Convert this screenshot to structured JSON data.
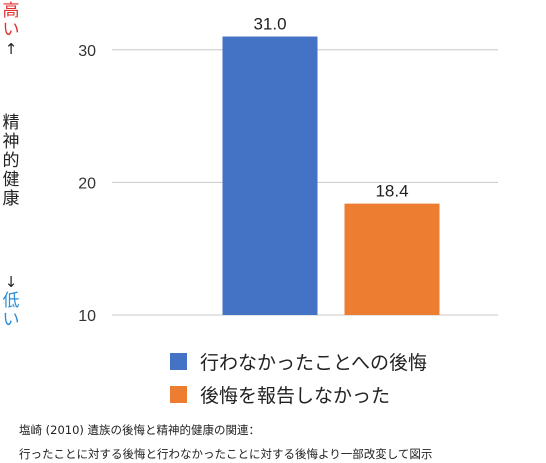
{
  "chart_data": {
    "type": "bar",
    "categories": [
      "行わなかったことへの後悔",
      "後悔を報告しなかった"
    ],
    "values": [
      31.0,
      18.4
    ],
    "value_labels": [
      "31.0",
      "18.4"
    ],
    "ylim": [
      10,
      33
    ],
    "yticks": [
      10,
      20,
      30
    ],
    "colors": [
      "#4472c4",
      "#ed7d31"
    ],
    "grid": true,
    "legend_position": "bottom"
  },
  "y_axis_annotation": {
    "high": "高い",
    "up_arrow": "↑",
    "label_chars": [
      "精",
      "神",
      "的",
      "健",
      "康"
    ],
    "down_arrow": "↓",
    "low": "低い",
    "high_color": "#e03030",
    "low_color": "#2a8fd8"
  },
  "legend": {
    "items": [
      {
        "label": "行わなかったことへの後悔",
        "color": "#4472c4"
      },
      {
        "label": "後悔を報告しなかった",
        "color": "#ed7d31"
      }
    ]
  },
  "caption": {
    "line1": "塩崎 (2010) 遺族の後悔と精神的健康の関連：",
    "line2": "行ったことに対する後悔と行わなかったことに対する後悔より一部改変して図示"
  }
}
